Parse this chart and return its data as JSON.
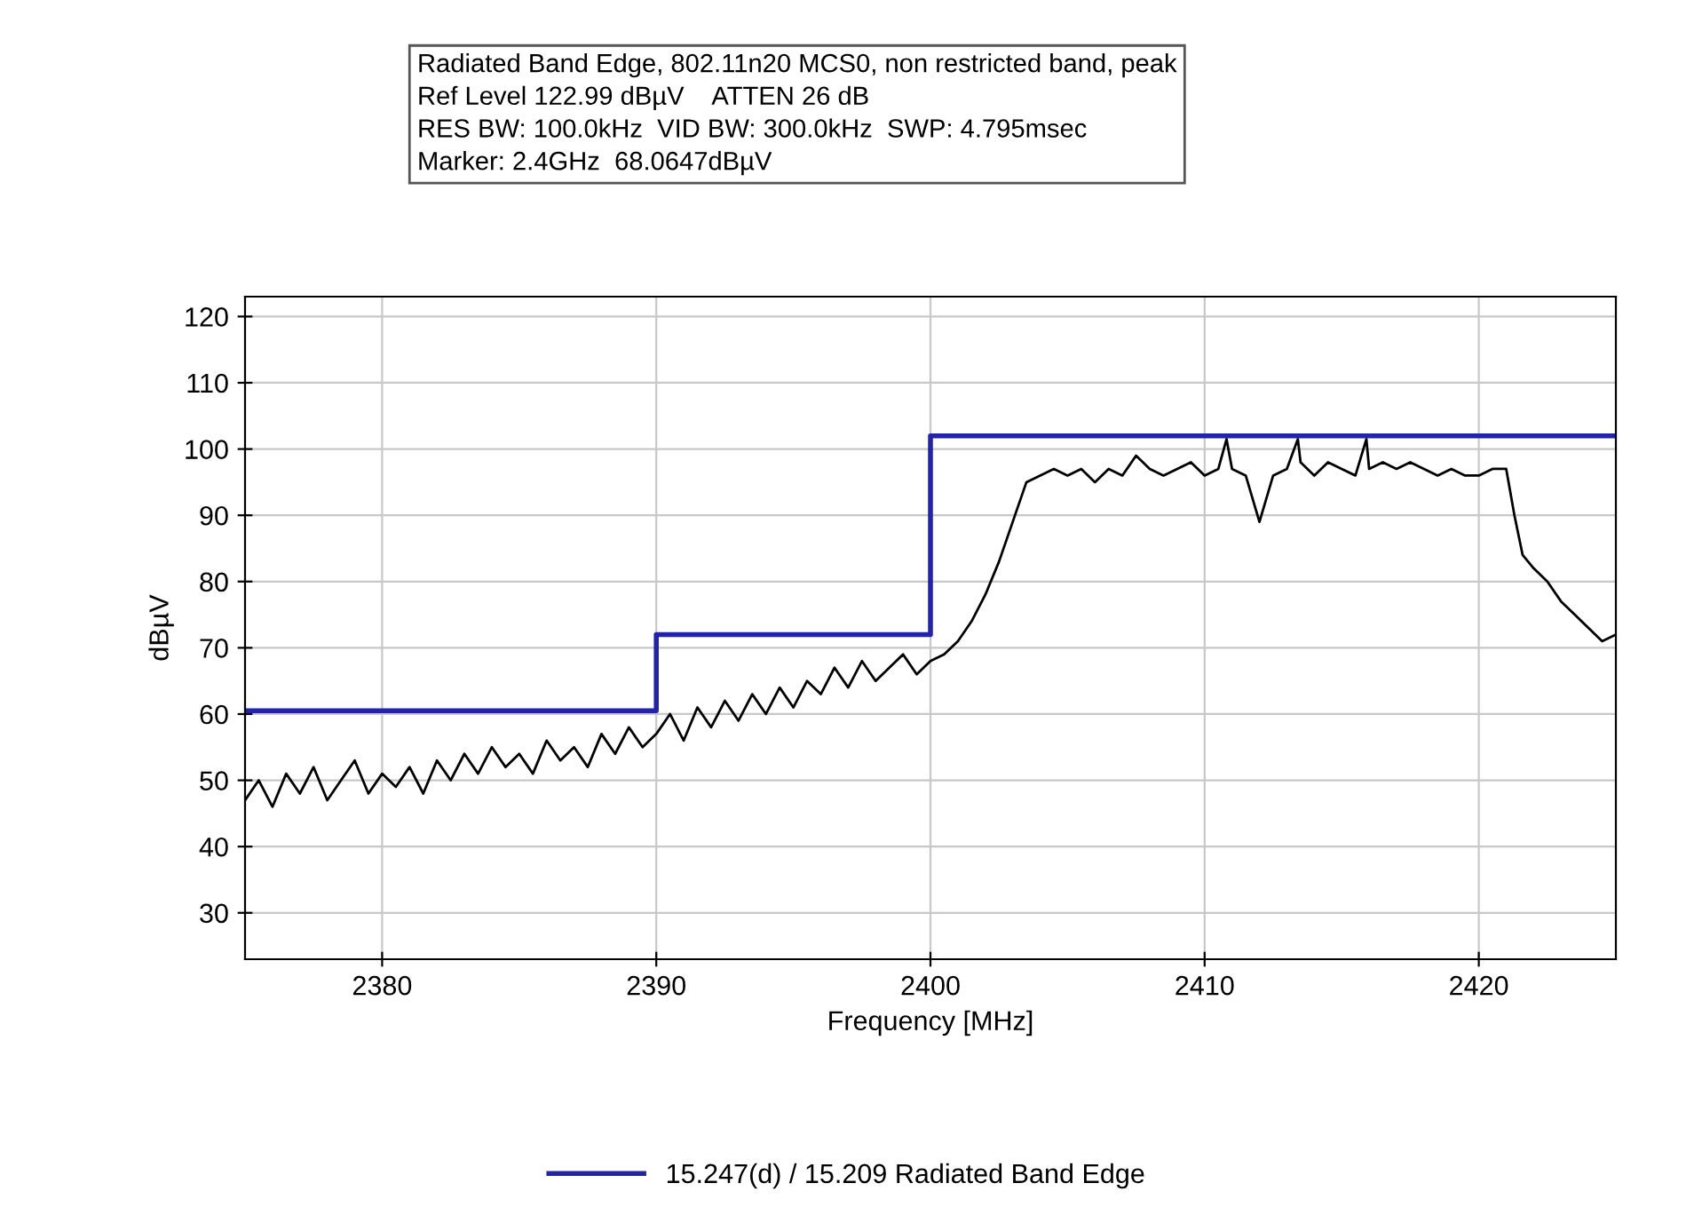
{
  "chart_data": {
    "type": "line",
    "title": "Radiated Band Edge, 802.11n20 MCS0, non restricted band, peak",
    "annotations": [
      "Ref Level 122.99 dBµV    ATTEN 26 dB",
      "RES BW: 100.0kHz  VID BW: 300.0kHz  SWP: 4.795msec",
      "Marker: 2.4GHz  68.0647dBµV"
    ],
    "xlabel": "Frequency [MHz]",
    "ylabel": "dBµV",
    "xlim": [
      2375,
      2425
    ],
    "xticks": [
      2380,
      2390,
      2400,
      2410,
      2420
    ],
    "ylim": [
      23,
      123
    ],
    "yticks": [
      30,
      40,
      50,
      60,
      70,
      80,
      90,
      100,
      110,
      120
    ],
    "grid": true,
    "legend": "bottom",
    "series": [
      {
        "color": "#000000",
        "x": [
          2375,
          2375.5,
          2376,
          2376.5,
          2377,
          2377.5,
          2378,
          2378.5,
          2379,
          2379.5,
          2380,
          2380.5,
          2381,
          2381.5,
          2382,
          2382.5,
          2383,
          2383.5,
          2384,
          2384.5,
          2385,
          2385.5,
          2386,
          2386.5,
          2387,
          2387.5,
          2388,
          2388.5,
          2389,
          2389.5,
          2390,
          2390.5,
          2391,
          2391.5,
          2392,
          2392.5,
          2393,
          2393.5,
          2394,
          2394.5,
          2395,
          2395.5,
          2396,
          2396.5,
          2397,
          2397.5,
          2398,
          2398.5,
          2399,
          2399.5,
          2400,
          2400.5,
          2401,
          2401.5,
          2402,
          2402.5,
          2403,
          2403.5,
          2404,
          2404.5,
          2405,
          2405.5,
          2406,
          2406.5,
          2407,
          2407.5,
          2408,
          2408.5,
          2409,
          2409.5,
          2410,
          2410.5,
          2410.8,
          2411,
          2411.5,
          2412,
          2412.5,
          2413,
          2413.4,
          2413.5,
          2414,
          2414.5,
          2415,
          2415.5,
          2415.9,
          2416,
          2416.5,
          2417,
          2417.5,
          2418,
          2418.5,
          2419,
          2419.5,
          2420,
          2420.5,
          2421,
          2421.3,
          2421.6,
          2422,
          2422.5,
          2423,
          2423.5,
          2424,
          2424.5,
          2425
        ],
        "values": [
          47,
          50,
          46,
          51,
          48,
          52,
          47,
          50,
          53,
          48,
          51,
          49,
          52,
          48,
          53,
          50,
          54,
          51,
          55,
          52,
          54,
          51,
          56,
          53,
          55,
          52,
          57,
          54,
          58,
          55,
          57,
          60,
          56,
          61,
          58,
          62,
          59,
          63,
          60,
          64,
          61,
          65,
          63,
          67,
          64,
          68,
          65,
          67,
          69,
          66,
          68,
          69,
          71,
          74,
          78,
          83,
          89,
          95,
          96,
          97,
          96,
          97,
          95,
          97,
          96,
          99,
          97,
          96,
          97,
          98,
          96,
          97,
          101.5,
          97,
          96,
          89,
          96,
          97,
          101.5,
          98,
          96,
          98,
          97,
          96,
          101.5,
          97,
          98,
          97,
          98,
          97,
          96,
          97,
          96,
          96,
          97,
          97,
          90,
          84,
          82,
          80,
          77,
          75,
          73,
          71,
          72
        ]
      },
      {
        "type": "step",
        "name": "15.247(d) / 15.209 Radiated Band Edge",
        "color": "#2424a8",
        "x": [
          2375,
          2390,
          2400,
          2425
        ],
        "values": [
          60.5,
          72,
          102,
          102
        ]
      }
    ]
  }
}
